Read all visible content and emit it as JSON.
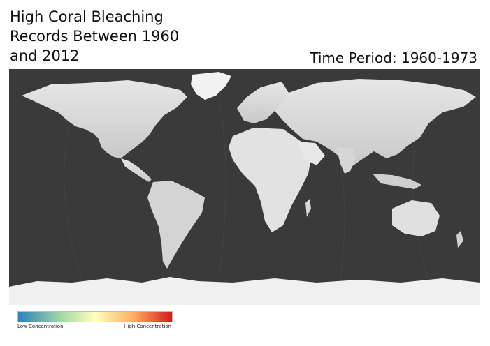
{
  "map": {
    "title_lines": [
      "High Coral Bleaching",
      "Records Between 1960",
      "and 2012"
    ],
    "time_period_label": "Time Period: 1960-1973",
    "basemap": "grayscale world relief map (equirectangular)",
    "legend": {
      "low_label": "Low Concentration",
      "high_label": "High Concentration",
      "colors": [
        "#2b83ba",
        "#abdda4",
        "#ffffbf",
        "#fdae61",
        "#d7191c"
      ]
    }
  }
}
